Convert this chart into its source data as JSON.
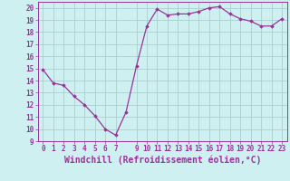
{
  "x": [
    0,
    1,
    2,
    3,
    4,
    5,
    6,
    7,
    8,
    9,
    10,
    11,
    12,
    13,
    14,
    15,
    16,
    17,
    18,
    19,
    20,
    21,
    22,
    23
  ],
  "y": [
    14.9,
    13.8,
    13.6,
    12.7,
    12.0,
    11.1,
    10.0,
    9.5,
    11.4,
    15.2,
    18.5,
    19.9,
    19.4,
    19.5,
    19.5,
    19.7,
    20.0,
    20.1,
    19.5,
    19.1,
    18.9,
    18.5,
    18.5,
    19.1
  ],
  "xlabel": "Windchill (Refroidissement éolien,°C)",
  "ylim": [
    9,
    20.5
  ],
  "xlim": [
    -0.5,
    23.5
  ],
  "yticks": [
    9,
    10,
    11,
    12,
    13,
    14,
    15,
    16,
    17,
    18,
    19,
    20
  ],
  "xticks": [
    0,
    1,
    2,
    3,
    4,
    5,
    6,
    7,
    9,
    10,
    11,
    12,
    13,
    14,
    15,
    16,
    17,
    18,
    19,
    20,
    21,
    22,
    23
  ],
  "line_color": "#993399",
  "marker": "D",
  "marker_size": 1.8,
  "bg_color": "#cff0f0",
  "grid_color": "#aacece",
  "tick_label_fontsize": 5.5,
  "xlabel_fontsize": 7.0
}
